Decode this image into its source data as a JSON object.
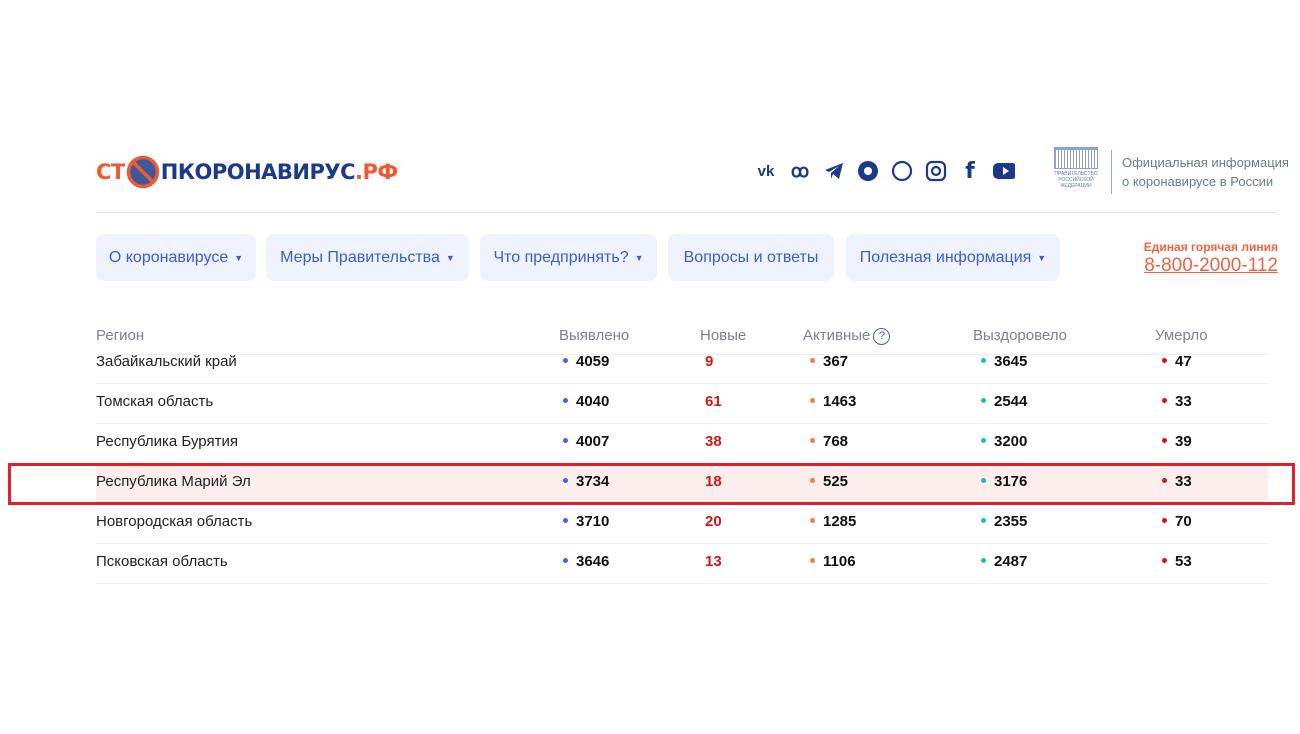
{
  "logo": {
    "text_left": "СТ",
    "text_right": "ПКОРОНАВИРУС",
    "text_domain": ".РФ"
  },
  "social": [
    "vk-icon",
    "odnoklassniki-icon",
    "telegram-icon",
    "yandex-zen-icon",
    "viber-icon",
    "instagram-icon",
    "facebook-icon",
    "youtube-icon"
  ],
  "gov": {
    "emblem_text": "ПРАВИТЕЛЬСТВО РОССИЙСКОЙ ФЕДЕРАЦИИ",
    "line1": "Официальная информация",
    "line2": "о коронавирусе в России"
  },
  "nav": [
    {
      "label": "О коронавирусе",
      "dropdown": true
    },
    {
      "label": "Меры Правительства",
      "dropdown": true
    },
    {
      "label": "Что предпринять?",
      "dropdown": true
    },
    {
      "label": "Вопросы и ответы",
      "dropdown": false
    },
    {
      "label": "Полезная информация",
      "dropdown": true
    }
  ],
  "hotline": {
    "label": "Единая горячая линия",
    "phone": "8-800-2000-112"
  },
  "table": {
    "headers": {
      "region": "Регион",
      "detected": "Выявлено",
      "new": "Новые",
      "active": "Активные",
      "help": "?",
      "recovered": "Выздоровело",
      "died": "Умерло"
    },
    "colors": {
      "detected": "#3d63f0",
      "new": "#d01818",
      "active": "#f47a4a",
      "recovered": "#1fbf9f",
      "died": "#d01818",
      "highlight_border": "#e0202a"
    },
    "rows": [
      {
        "region": "Забайкальский край",
        "detected": "4059",
        "new": "9",
        "active": "367",
        "recovered": "3645",
        "died": "47"
      },
      {
        "region": "Томская область",
        "detected": "4040",
        "new": "61",
        "active": "1463",
        "recovered": "2544",
        "died": "33"
      },
      {
        "region": "Республика Бурятия",
        "detected": "4007",
        "new": "38",
        "active": "768",
        "recovered": "3200",
        "died": "39"
      },
      {
        "region": "Республика Марий Эл",
        "detected": "3734",
        "new": "18",
        "active": "525",
        "recovered": "3176",
        "died": "33",
        "highlighted": true
      },
      {
        "region": "Новгородская область",
        "detected": "3710",
        "new": "20",
        "active": "1285",
        "recovered": "2355",
        "died": "70"
      },
      {
        "region": "Псковская область",
        "detected": "3646",
        "new": "13",
        "active": "1106",
        "recovered": "2487",
        "died": "53"
      }
    ]
  }
}
